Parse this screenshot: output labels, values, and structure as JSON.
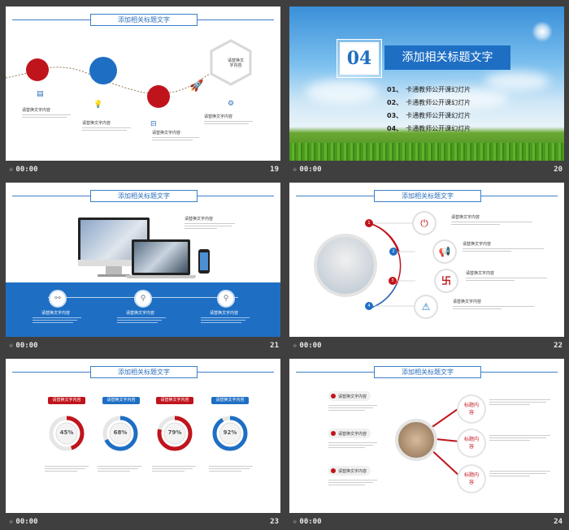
{
  "header_title": "添加相关标题文字",
  "footer_time": "00:00",
  "body_label": "请替换文字内容",
  "hex_label": "请替换文字内容",
  "gauge_label": "请替换文字内容",
  "box_label": "标题内容",
  "slides": [
    {
      "number": "19"
    },
    {
      "number": "20",
      "section": "04",
      "title": "添加相关标题文字",
      "toc": [
        {
          "n": "01、",
          "text": "卡通教师公开课幻灯片"
        },
        {
          "n": "02、",
          "text": "卡通教师公开课幻灯片"
        },
        {
          "n": "03、",
          "text": "卡通教师公开课幻灯片"
        },
        {
          "n": "04、",
          "text": "卡通教师公开课幻灯片"
        }
      ]
    },
    {
      "number": "21"
    },
    {
      "number": "22",
      "markers": [
        "1",
        "2",
        "3",
        "4"
      ]
    },
    {
      "number": "23",
      "gauges": [
        "45%",
        "68%",
        "79%",
        "92%"
      ]
    },
    {
      "number": "24"
    }
  ],
  "colors": {
    "red": "#c0141c",
    "blue": "#1e6fc4"
  },
  "icons": [
    "document-icon",
    "lightbulb-icon",
    "inbox-icon",
    "gear-icon",
    "rocket-icon",
    "link-icon",
    "search-icon",
    "power-icon",
    "megaphone-icon",
    "warning-icon",
    "star-icon"
  ]
}
